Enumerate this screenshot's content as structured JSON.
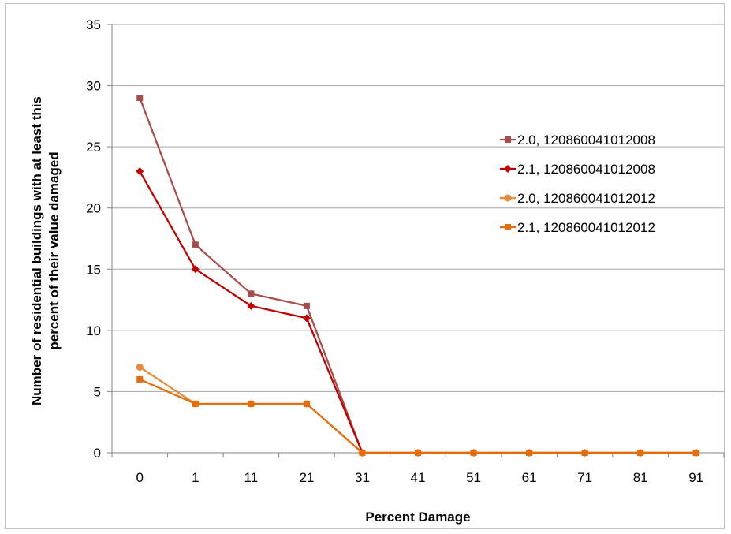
{
  "chart_data": {
    "type": "line",
    "title": "",
    "xlabel": "Percent Damage",
    "ylabel_lines": [
      "Number of residential buildings with at least this",
      "percent of their value damaged"
    ],
    "categories": [
      "0",
      "1",
      "11",
      "21",
      "31",
      "41",
      "51",
      "61",
      "71",
      "81",
      "91"
    ],
    "ylim": [
      0,
      35
    ],
    "yticks": [
      0,
      5,
      10,
      15,
      20,
      25,
      30,
      35
    ],
    "grid": "horizontal",
    "legend_position": "right",
    "series": [
      {
        "name": "2.0, 120860041012008",
        "color": "#a84d4a",
        "marker": "square",
        "values": [
          29,
          17,
          13,
          12,
          0,
          0,
          0,
          0,
          0,
          0,
          0
        ]
      },
      {
        "name": "2.1, 120860041012008",
        "color": "#c00000",
        "marker": "diamond",
        "values": [
          23,
          15,
          12,
          11,
          0,
          0,
          0,
          0,
          0,
          0,
          0
        ]
      },
      {
        "name": "2.0, 120860041012012",
        "color": "#e68a3c",
        "marker": "circle",
        "values": [
          7,
          4,
          4,
          4,
          0,
          0,
          0,
          0,
          0,
          0,
          0
        ]
      },
      {
        "name": "2.1, 120860041012012",
        "color": "#e46c0a",
        "marker": "square",
        "values": [
          6,
          4,
          4,
          4,
          0,
          0,
          0,
          0,
          0,
          0,
          0
        ]
      }
    ]
  }
}
